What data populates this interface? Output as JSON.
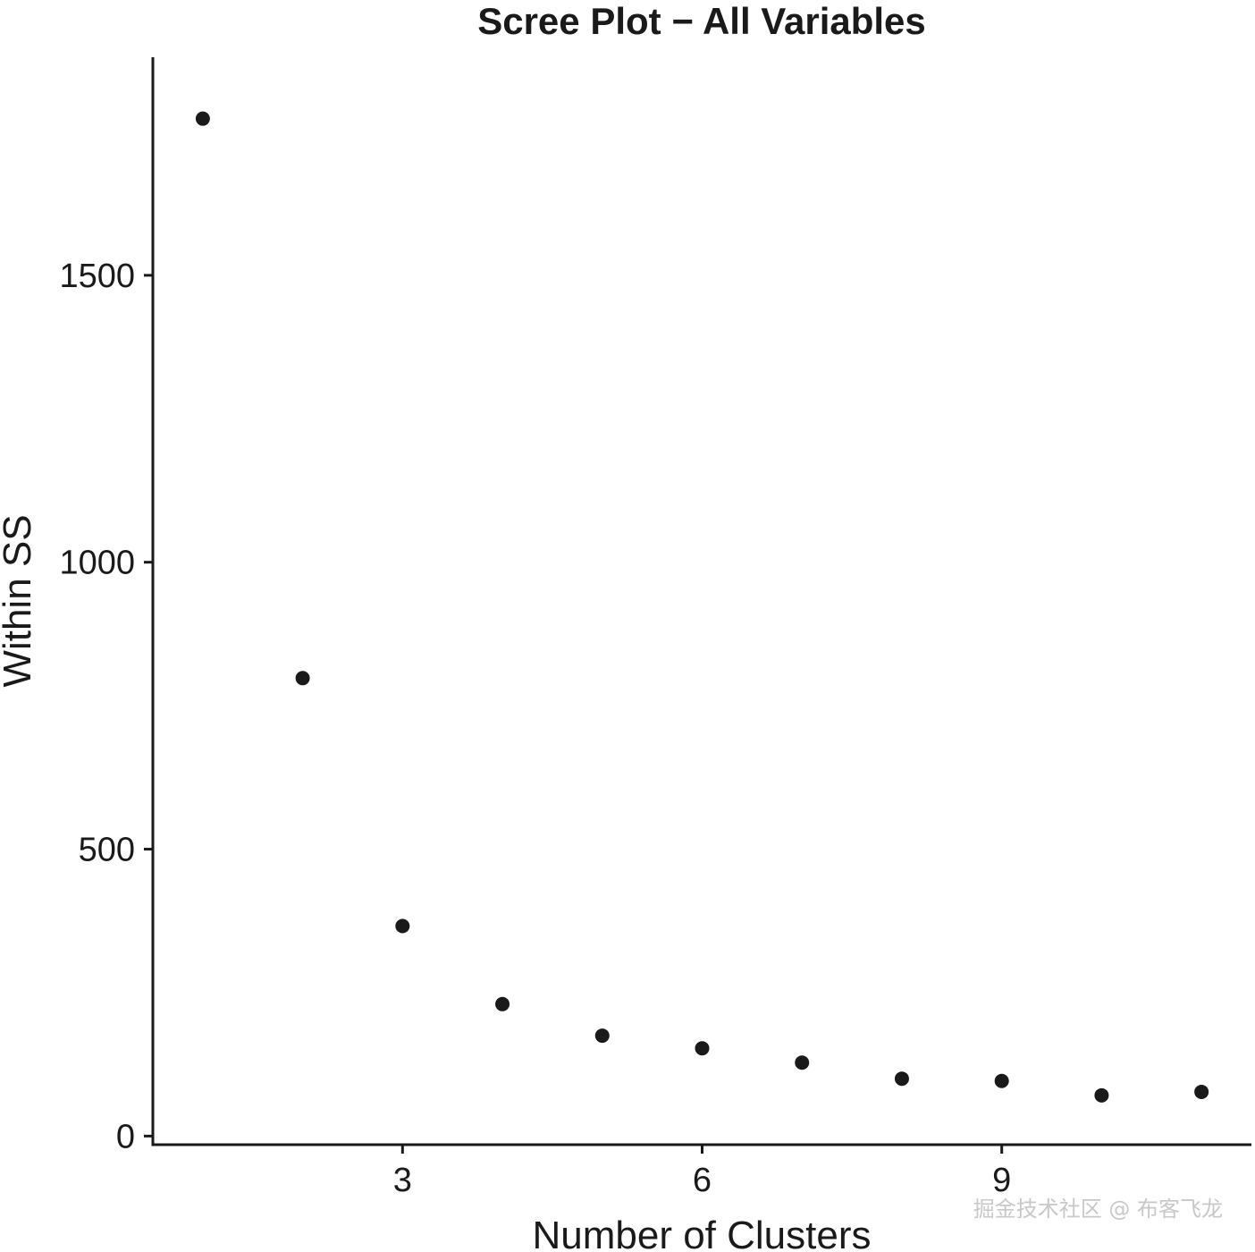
{
  "chart_data": {
    "type": "scatter",
    "title": "Scree Plot − All Variables",
    "xlabel": "Number of Clusters",
    "ylabel": "Within SS",
    "x": [
      1,
      2,
      3,
      4,
      5,
      6,
      7,
      8,
      9,
      10,
      11
    ],
    "y": [
      1773,
      798,
      366,
      230,
      175,
      153,
      128,
      100,
      96,
      71,
      77
    ],
    "xlim": [
      0.5,
      11.5
    ],
    "ylim": [
      -15,
      1880
    ],
    "x_ticks": [
      3,
      6,
      9
    ],
    "y_ticks": [
      0,
      500,
      1000,
      1500
    ],
    "x_tick_labels": [
      "3",
      "6",
      "9"
    ],
    "y_tick_labels": [
      "0",
      "500",
      "1000",
      "1500"
    ],
    "grid": false,
    "legend": "none",
    "point_color": "#1a1a1a"
  },
  "watermark": "掘金技术社区 @ 布客飞龙"
}
